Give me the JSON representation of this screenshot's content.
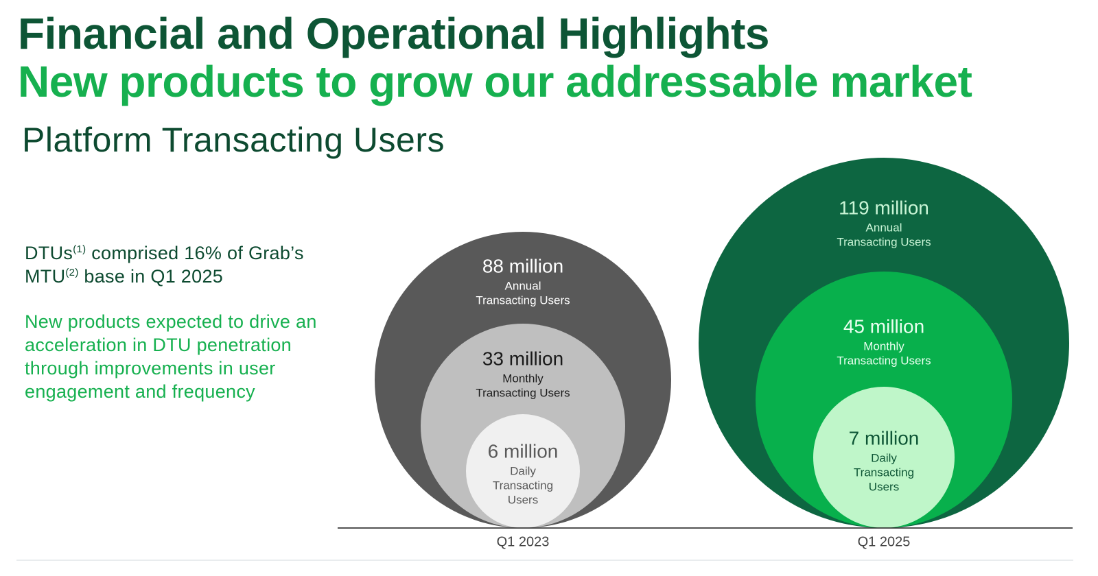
{
  "header": {
    "title": "Financial and Operational Highlights",
    "subtitle": "New products to grow our addressable market",
    "section_title": "Platform Transacting Users"
  },
  "notes": {
    "dtu_text_1": "DTUs",
    "dtu_sup_1": "(1)",
    "dtu_text_2": " comprised 16% of Grab’s MTU",
    "dtu_sup_2": "(2)",
    "dtu_text_3": " base in Q1 2025",
    "outlook": "New products expected to drive an acceleration in DTU penetration through improvements in user engagement and frequency"
  },
  "chart_data": {
    "type": "nested-bubble",
    "categories": [
      "Q1 2023",
      "Q1 2025"
    ],
    "series": [
      {
        "category": "Q1 2023",
        "levels": [
          {
            "value_label": "88 million",
            "value": 88,
            "unit": "million",
            "label_lines": [
              "Annual",
              "Transacting Users"
            ],
            "fill": "#595959",
            "text_color": "#ffffff"
          },
          {
            "value_label": "33 million",
            "value": 33,
            "unit": "million",
            "label_lines": [
              "Monthly",
              "Transacting Users"
            ],
            "fill": "#bfbfbf",
            "text_color": "#1a1a1a"
          },
          {
            "value_label": "6 million",
            "value": 6,
            "unit": "million",
            "label_lines": [
              "Daily",
              "Transacting",
              "Users"
            ],
            "fill": "#f0f0f0",
            "text_color": "#595959"
          }
        ]
      },
      {
        "category": "Q1 2025",
        "levels": [
          {
            "value_label": "119 million",
            "value": 119,
            "unit": "million",
            "label_lines": [
              "Annual",
              "Transacting Users"
            ],
            "fill": "#0d6641",
            "text_color": "#c9f5d6"
          },
          {
            "value_label": "45 million",
            "value": 45,
            "unit": "million",
            "label_lines": [
              "Monthly",
              "Transacting Users"
            ],
            "fill": "#08b04c",
            "text_color": "#eafff0"
          },
          {
            "value_label": "7 million",
            "value": 7,
            "unit": "million",
            "label_lines": [
              "Daily",
              "Transacting",
              "Users"
            ],
            "fill": "#bff6c9",
            "text_color": "#0d5535"
          }
        ]
      }
    ],
    "baseline_color": "#1a1a1a",
    "category_label_color": "#444444"
  }
}
